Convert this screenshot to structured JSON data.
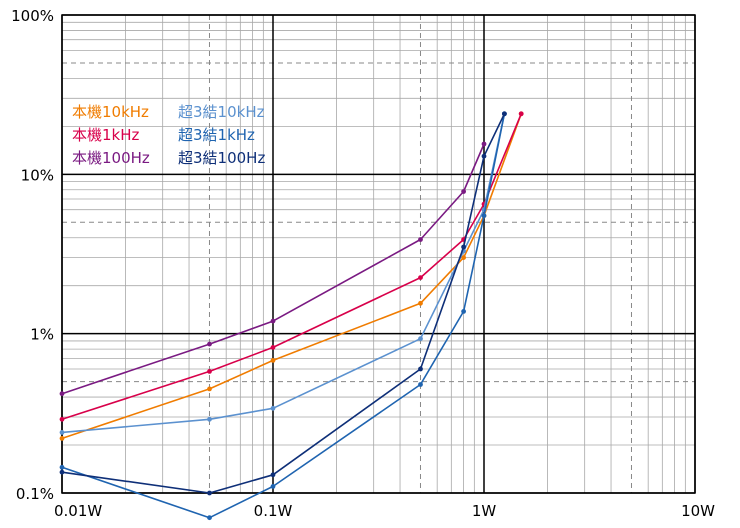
{
  "chart_data": {
    "type": "line",
    "x_scale": "log",
    "y_scale": "log",
    "xlim": [
      0.01,
      10
    ],
    "ylim": [
      0.1,
      100
    ],
    "x_ticks": [
      {
        "value": 0.01,
        "label": "0.01W"
      },
      {
        "value": 0.1,
        "label": "0.1W"
      },
      {
        "value": 1,
        "label": "1W"
      },
      {
        "value": 10,
        "label": "10W"
      }
    ],
    "y_ticks": [
      {
        "value": 0.1,
        "label": "0.1%"
      },
      {
        "value": 1,
        "label": "1%"
      },
      {
        "value": 10,
        "label": "10%"
      },
      {
        "value": 100,
        "label": "100%"
      }
    ],
    "grid": true,
    "legend_position": "top-left",
    "series": [
      {
        "name": "本機10kHz",
        "color": "#f07c00",
        "points": [
          [
            0.01,
            0.22
          ],
          [
            0.05,
            0.45
          ],
          [
            0.1,
            0.68
          ],
          [
            0.5,
            1.55
          ],
          [
            0.8,
            3.0
          ],
          [
            1.0,
            5.5
          ],
          [
            1.5,
            24
          ]
        ]
      },
      {
        "name": "本機1kHz",
        "color": "#d8004a",
        "points": [
          [
            0.01,
            0.29
          ],
          [
            0.05,
            0.58
          ],
          [
            0.1,
            0.82
          ],
          [
            0.5,
            2.25
          ],
          [
            0.8,
            3.9
          ],
          [
            1.0,
            6.5
          ],
          [
            1.5,
            24
          ]
        ]
      },
      {
        "name": "本機100Hz",
        "color": "#7a1a82",
        "points": [
          [
            0.01,
            0.42
          ],
          [
            0.05,
            0.86
          ],
          [
            0.1,
            1.2
          ],
          [
            0.5,
            3.9
          ],
          [
            0.8,
            7.8
          ],
          [
            1.0,
            15.5
          ]
        ]
      },
      {
        "name": "超3結10kHz",
        "color": "#5b91cf",
        "points": [
          [
            0.01,
            0.24
          ],
          [
            0.05,
            0.29
          ],
          [
            0.1,
            0.34
          ],
          [
            0.5,
            0.93
          ],
          [
            0.8,
            3.3
          ],
          [
            1.0,
            6.0
          ],
          [
            1.25,
            24
          ]
        ]
      },
      {
        "name": "超3結1kHz",
        "color": "#1f64b0",
        "points": [
          [
            0.01,
            0.145
          ],
          [
            0.05,
            0.07
          ],
          [
            0.1,
            0.11
          ],
          [
            0.5,
            0.48
          ],
          [
            0.8,
            1.38
          ],
          [
            1.0,
            5.5
          ],
          [
            1.25,
            24
          ]
        ]
      },
      {
        "name": "超3結100Hz",
        "color": "#0e2f78",
        "points": [
          [
            0.01,
            0.135
          ],
          [
            0.05,
            0.1
          ],
          [
            0.1,
            0.13
          ],
          [
            0.5,
            0.6
          ],
          [
            0.8,
            3.5
          ],
          [
            1.0,
            13
          ],
          [
            1.25,
            24
          ]
        ]
      }
    ]
  }
}
